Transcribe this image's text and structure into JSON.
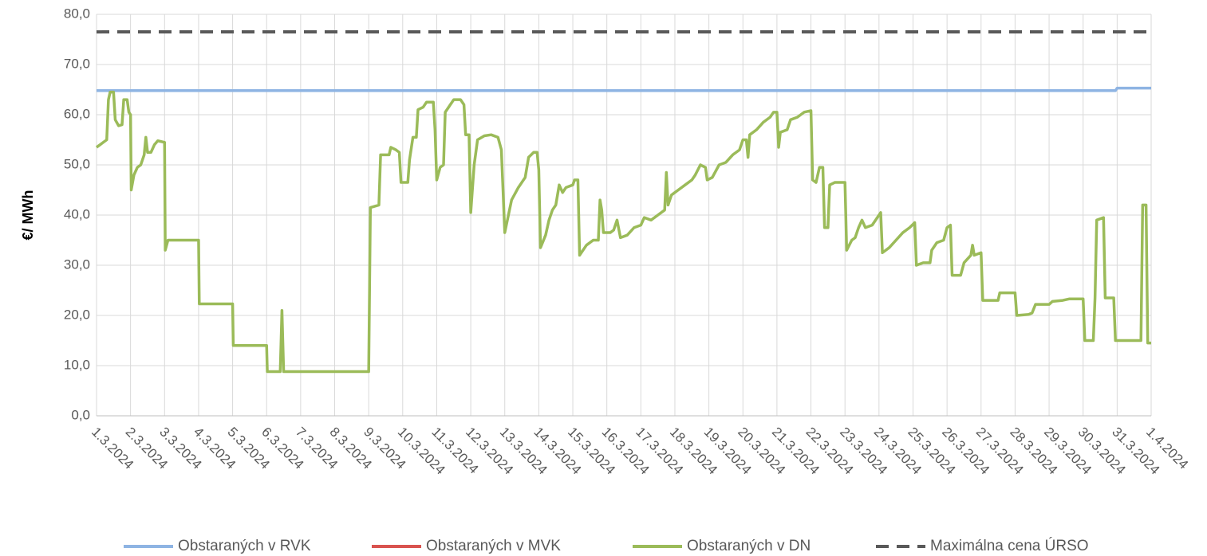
{
  "chart_data": {
    "type": "line",
    "ylabel": "€/ MWh",
    "ylim": [
      0,
      80
    ],
    "yticks": [
      {
        "value": 0,
        "label": "0,0"
      },
      {
        "value": 10,
        "label": "10,0"
      },
      {
        "value": 20,
        "label": "20,0"
      },
      {
        "value": 30,
        "label": "30,0"
      },
      {
        "value": 40,
        "label": "40,0"
      },
      {
        "value": 50,
        "label": "50,0"
      },
      {
        "value": 60,
        "label": "60,0"
      },
      {
        "value": 70,
        "label": "70,0"
      },
      {
        "value": 80,
        "label": "80,0"
      }
    ],
    "xlim": [
      0,
      31
    ],
    "xticks": [
      {
        "value": 0,
        "label": "1.3.2024"
      },
      {
        "value": 1,
        "label": "2.3.2024"
      },
      {
        "value": 2,
        "label": "3.3.2024"
      },
      {
        "value": 3,
        "label": "4.3.2024"
      },
      {
        "value": 4,
        "label": "5.3.2024"
      },
      {
        "value": 5,
        "label": "6.3.2024"
      },
      {
        "value": 6,
        "label": "7.3.2024"
      },
      {
        "value": 7,
        "label": "8.3.2024"
      },
      {
        "value": 8,
        "label": "9.3.2024"
      },
      {
        "value": 9,
        "label": "10.3.2024"
      },
      {
        "value": 10,
        "label": "11.3.2024"
      },
      {
        "value": 11,
        "label": "12.3.2024"
      },
      {
        "value": 12,
        "label": "13.3.2024"
      },
      {
        "value": 13,
        "label": "14.3.2024"
      },
      {
        "value": 14,
        "label": "15.3.2024"
      },
      {
        "value": 15,
        "label": "16.3.2024"
      },
      {
        "value": 16,
        "label": "17.3.2024"
      },
      {
        "value": 17,
        "label": "18.3.2024"
      },
      {
        "value": 18,
        "label": "19.3.2024"
      },
      {
        "value": 19,
        "label": "20.3.2024"
      },
      {
        "value": 20,
        "label": "21.3.2024"
      },
      {
        "value": 21,
        "label": "22.3.2024"
      },
      {
        "value": 22,
        "label": "23.3.2024"
      },
      {
        "value": 23,
        "label": "24.3.2024"
      },
      {
        "value": 24,
        "label": "25.3.2024"
      },
      {
        "value": 25,
        "label": "26.3.2024"
      },
      {
        "value": 26,
        "label": "27.3.2024"
      },
      {
        "value": 27,
        "label": "28.3.2024"
      },
      {
        "value": 28,
        "label": "29.3.2024"
      },
      {
        "value": 29,
        "label": "30.3.2024"
      },
      {
        "value": 30,
        "label": "31.3.2024"
      },
      {
        "value": 31,
        "label": "1.4.2024"
      }
    ],
    "grid": true,
    "series": [
      {
        "name": "Obstaraných v RVK",
        "color": "#8eb4e3",
        "x": [
          0,
          29.95,
          30,
          31
        ],
        "values": [
          64.8,
          64.8,
          65.3,
          65.3
        ]
      },
      {
        "name": "Obstaraných v MVK",
        "color": "#d9534f",
        "x": [],
        "values": []
      },
      {
        "name": "Obstaraných v DN",
        "color": "#9bbb59",
        "x": [
          0,
          0.2,
          0.3,
          0.35,
          0.4,
          0.5,
          0.55,
          0.65,
          0.75,
          0.8,
          0.9,
          0.95,
          1.0,
          1.02,
          1.1,
          1.2,
          1.3,
          1.4,
          1.45,
          1.5,
          1.6,
          1.7,
          1.8,
          2.0,
          2.02,
          2.1,
          3.0,
          3.02,
          4.0,
          4.02,
          5.0,
          5.02,
          5.4,
          5.45,
          5.5,
          8.0,
          8.05,
          8.3,
          8.35,
          8.6,
          8.65,
          8.8,
          8.9,
          8.95,
          9.15,
          9.2,
          9.3,
          9.4,
          9.45,
          9.6,
          9.7,
          9.9,
          9.95,
          10.0,
          10.1,
          10.2,
          10.25,
          10.4,
          10.5,
          10.7,
          10.8,
          10.85,
          10.95,
          11.0,
          11.1,
          11.2,
          11.4,
          11.6,
          11.8,
          11.9,
          12.0,
          12.2,
          12.4,
          12.5,
          12.6,
          12.7,
          12.85,
          12.95,
          13.0,
          13.05,
          13.2,
          13.3,
          13.4,
          13.5,
          13.6,
          13.7,
          13.8,
          14.0,
          14.05,
          14.15,
          14.2,
          14.4,
          14.6,
          14.75,
          14.8,
          14.85,
          14.9,
          15.1,
          15.2,
          15.3,
          15.4,
          15.6,
          15.8,
          16.0,
          16.1,
          16.3,
          16.5,
          16.7,
          16.75,
          16.8,
          16.9,
          17.1,
          17.3,
          17.5,
          17.6,
          17.75,
          17.9,
          17.95,
          18.1,
          18.3,
          18.5,
          18.7,
          18.9,
          19.0,
          19.1,
          19.15,
          19.2,
          19.4,
          19.6,
          19.8,
          19.9,
          20.0,
          20.05,
          20.1,
          20.3,
          20.4,
          20.6,
          20.8,
          21.0,
          21.05,
          21.15,
          21.25,
          21.35,
          21.4,
          21.5,
          21.55,
          21.7,
          22.0,
          22.05,
          22.2,
          22.3,
          22.4,
          22.5,
          22.6,
          22.8,
          23.0,
          23.05,
          23.1,
          23.3,
          23.5,
          23.7,
          23.9,
          24.05,
          24.1,
          24.3,
          24.5,
          24.55,
          24.7,
          24.9,
          25.0,
          25.1,
          25.15,
          25.4,
          25.5,
          25.7,
          25.75,
          25.8,
          26.0,
          26.05,
          26.5,
          26.55,
          27.0,
          27.05,
          27.4,
          27.5,
          27.6,
          28.0,
          28.1,
          28.4,
          28.6,
          29.0,
          29.05,
          29.3,
          29.35,
          29.4,
          29.6,
          29.65,
          29.9,
          29.95,
          30.7,
          30.75,
          30.85,
          30.9,
          31.0
        ],
        "values": [
          53.5,
          54.5,
          55,
          63,
          64.5,
          64.5,
          59,
          57.8,
          58,
          63,
          63,
          60.5,
          60,
          45,
          48,
          49.5,
          50,
          52,
          55.5,
          52.5,
          52.5,
          54,
          54.8,
          54.5,
          33,
          35,
          35,
          22.3,
          22.3,
          14,
          14,
          8.8,
          8.8,
          21,
          8.8,
          8.8,
          41.5,
          42,
          52,
          52,
          53.5,
          53,
          52.5,
          46.5,
          46.5,
          51,
          55.5,
          55.5,
          61,
          61.5,
          62.5,
          62.5,
          57,
          47,
          49.5,
          50,
          60.5,
          62,
          63,
          63,
          62,
          56,
          56,
          40.5,
          50,
          55,
          55.8,
          56,
          55.5,
          53,
          36.5,
          43,
          45.5,
          46.5,
          47.5,
          51.5,
          52.5,
          52.5,
          49,
          33.5,
          36,
          39,
          41,
          42,
          46,
          44.5,
          45.5,
          46,
          47,
          47,
          32,
          34,
          35,
          35,
          43,
          41,
          36.5,
          36.5,
          37,
          39,
          35.5,
          36,
          37.5,
          38,
          39.5,
          39,
          40,
          41,
          48.5,
          42,
          44,
          45,
          46,
          47,
          48,
          50,
          49.5,
          47,
          47.5,
          50,
          50.5,
          52,
          53,
          55,
          55,
          51.5,
          56,
          57,
          58.5,
          59.5,
          60.5,
          60.5,
          53.5,
          56.5,
          57,
          59,
          59.5,
          60.5,
          60.8,
          47,
          46.5,
          49.5,
          49.5,
          37.5,
          37.5,
          46,
          46.5,
          46.5,
          33,
          35,
          35.5,
          37.5,
          39,
          37.5,
          38,
          40,
          40.5,
          32.5,
          33.5,
          35,
          36.5,
          37.5,
          38.5,
          30,
          30.5,
          30.5,
          33,
          34.5,
          35,
          37.5,
          38,
          28,
          28,
          30.5,
          32,
          34,
          32,
          32.5,
          23,
          23,
          24.5,
          24.5,
          20,
          20.2,
          20.5,
          22.2,
          22.2,
          22.8,
          23,
          23.3,
          23.3,
          15,
          15,
          23.5,
          39,
          39.5,
          23.5,
          23.5,
          15,
          15,
          42,
          42,
          14.5,
          14.5
        ]
      },
      {
        "name": "Maximálna cena ÚRSO",
        "color": "#595959",
        "dashed": true,
        "x": [
          0,
          31
        ],
        "values": [
          76.5,
          76.5
        ]
      }
    ]
  }
}
